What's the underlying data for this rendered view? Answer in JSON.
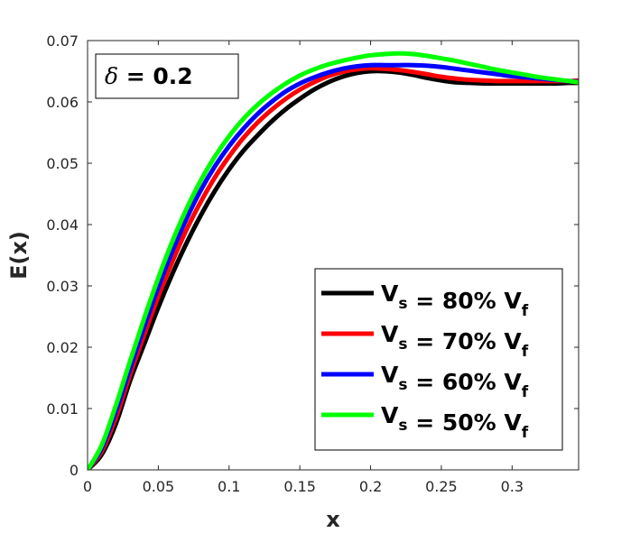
{
  "chart_data": {
    "type": "line",
    "title": "",
    "xlabel": "x",
    "ylabel": "E(x)",
    "xlim": [
      0,
      0.347
    ],
    "ylim": [
      0,
      0.07
    ],
    "xticks": [
      0,
      0.05,
      0.1,
      0.15,
      0.2,
      0.25,
      0.3
    ],
    "xtick_labels": [
      "0",
      "0.05",
      "0.1",
      "0.15",
      "0.2",
      "0.25",
      "0.3"
    ],
    "yticks": [
      0,
      0.01,
      0.02,
      0.03,
      0.04,
      0.05,
      0.06,
      0.07
    ],
    "ytick_labels": [
      "0",
      "0.01",
      "0.02",
      "0.03",
      "0.04",
      "0.05",
      "0.06",
      "0.07"
    ],
    "grid": false,
    "legend_position": "bottom-right",
    "annotation": {
      "symbol": "δ",
      "text": " = 0.2",
      "position": "top-left"
    },
    "series": [
      {
        "name": "V_s = 80% V_f",
        "legend": {
          "v": "V",
          "s": "s",
          "mid": " = 80% ",
          "f": "f"
        },
        "color": "#000000",
        "x": [
          0,
          0.01,
          0.02,
          0.03,
          0.04,
          0.05,
          0.06,
          0.07,
          0.08,
          0.09,
          0.1,
          0.11,
          0.12,
          0.13,
          0.14,
          0.15,
          0.16,
          0.17,
          0.18,
          0.19,
          0.2,
          0.21,
          0.22,
          0.23,
          0.24,
          0.25,
          0.26,
          0.27,
          0.28,
          0.29,
          0.3,
          0.31,
          0.32,
          0.33,
          0.34,
          0.347
        ],
        "y": [
          0,
          0.0025,
          0.0075,
          0.0145,
          0.0205,
          0.0265,
          0.032,
          0.037,
          0.0415,
          0.0455,
          0.049,
          0.052,
          0.0545,
          0.0568,
          0.0588,
          0.0605,
          0.062,
          0.0632,
          0.0641,
          0.0647,
          0.065,
          0.065,
          0.0648,
          0.0644,
          0.0639,
          0.0635,
          0.0632,
          0.0631,
          0.063,
          0.063,
          0.063,
          0.063,
          0.063,
          0.063,
          0.0631,
          0.0631
        ]
      },
      {
        "name": "V_s = 70% V_f",
        "legend": {
          "v": "V",
          "s": "s",
          "mid": " = 70% ",
          "f": "f"
        },
        "color": "#ff0000",
        "x": [
          0,
          0.01,
          0.02,
          0.03,
          0.04,
          0.05,
          0.06,
          0.07,
          0.08,
          0.09,
          0.1,
          0.11,
          0.12,
          0.13,
          0.14,
          0.15,
          0.16,
          0.17,
          0.18,
          0.19,
          0.2,
          0.21,
          0.22,
          0.23,
          0.24,
          0.25,
          0.26,
          0.27,
          0.28,
          0.29,
          0.3,
          0.31,
          0.32,
          0.33,
          0.34,
          0.347
        ],
        "y": [
          0,
          0.003,
          0.0085,
          0.0155,
          0.022,
          0.0283,
          0.034,
          0.0392,
          0.0437,
          0.0477,
          0.0511,
          0.0541,
          0.0566,
          0.0587,
          0.0605,
          0.062,
          0.0632,
          0.0642,
          0.0649,
          0.0653,
          0.0655,
          0.0654,
          0.0652,
          0.0649,
          0.0645,
          0.0641,
          0.0638,
          0.0636,
          0.0635,
          0.0634,
          0.0634,
          0.0634,
          0.0634,
          0.0634,
          0.0634,
          0.0635
        ]
      },
      {
        "name": "V_s = 60% V_f",
        "legend": {
          "v": "V",
          "s": "s",
          "mid": " = 60% ",
          "f": "f"
        },
        "color": "#0000ff",
        "x": [
          0,
          0.01,
          0.02,
          0.03,
          0.04,
          0.05,
          0.06,
          0.07,
          0.08,
          0.09,
          0.1,
          0.11,
          0.12,
          0.13,
          0.14,
          0.15,
          0.16,
          0.17,
          0.18,
          0.19,
          0.2,
          0.21,
          0.22,
          0.23,
          0.24,
          0.25,
          0.26,
          0.27,
          0.28,
          0.29,
          0.3,
          0.31,
          0.32,
          0.33,
          0.34,
          0.347
        ],
        "y": [
          0,
          0.0035,
          0.0095,
          0.0165,
          0.0233,
          0.0298,
          0.0357,
          0.041,
          0.0456,
          0.0495,
          0.0528,
          0.0556,
          0.058,
          0.06,
          0.0617,
          0.063,
          0.064,
          0.0648,
          0.0654,
          0.0658,
          0.066,
          0.066,
          0.066,
          0.066,
          0.0659,
          0.0657,
          0.0654,
          0.0651,
          0.0648,
          0.0645,
          0.0642,
          0.064,
          0.0638,
          0.0636,
          0.0634,
          0.0633
        ]
      },
      {
        "name": "V_s = 50% V_f",
        "legend": {
          "v": "V",
          "s": "s",
          "mid": " = 50% ",
          "f": "f"
        },
        "color": "#00ff00",
        "x": [
          0,
          0.01,
          0.02,
          0.03,
          0.04,
          0.05,
          0.06,
          0.07,
          0.08,
          0.09,
          0.1,
          0.11,
          0.12,
          0.13,
          0.14,
          0.15,
          0.16,
          0.17,
          0.18,
          0.19,
          0.2,
          0.21,
          0.22,
          0.23,
          0.24,
          0.25,
          0.26,
          0.27,
          0.28,
          0.29,
          0.3,
          0.31,
          0.32,
          0.33,
          0.34,
          0.347
        ],
        "y": [
          0,
          0.004,
          0.0105,
          0.0177,
          0.0247,
          0.0313,
          0.0373,
          0.0426,
          0.0472,
          0.0511,
          0.0544,
          0.0572,
          0.0595,
          0.0614,
          0.063,
          0.0643,
          0.0653,
          0.0661,
          0.0667,
          0.0672,
          0.0676,
          0.0678,
          0.0679,
          0.0678,
          0.0675,
          0.0671,
          0.0667,
          0.0662,
          0.0657,
          0.0652,
          0.0648,
          0.0644,
          0.064,
          0.0637,
          0.0634,
          0.0632
        ]
      }
    ]
  }
}
